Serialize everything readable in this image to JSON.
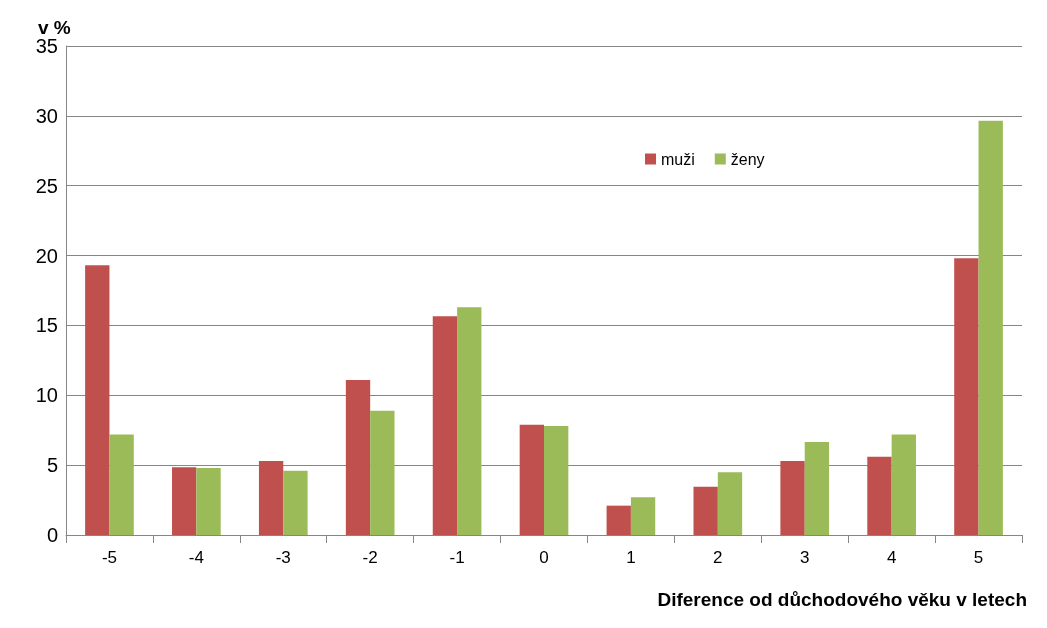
{
  "chart_data": {
    "type": "bar",
    "ylabel": "v %",
    "xlabel": "Diference od důchodového věku v letech",
    "categories": [
      "-5",
      "-4",
      "-3",
      "-2",
      "-1",
      "0",
      "1",
      "2",
      "3",
      "4",
      "5"
    ],
    "series": [
      {
        "name": "muži",
        "color": "#c0504d",
        "values": [
          19.3,
          4.85,
          5.3,
          11.1,
          15.65,
          7.9,
          2.1,
          3.45,
          5.3,
          5.6,
          19.8
        ]
      },
      {
        "name": "ženy",
        "color": "#9bbb59",
        "values": [
          7.2,
          4.8,
          4.6,
          8.9,
          16.3,
          7.8,
          2.7,
          4.5,
          6.65,
          7.2,
          29.65
        ]
      }
    ],
    "ylim": [
      0,
      35
    ],
    "yticks": [
      0,
      5,
      10,
      15,
      20,
      25,
      30,
      35
    ],
    "grid": "y",
    "legend": "top right"
  }
}
